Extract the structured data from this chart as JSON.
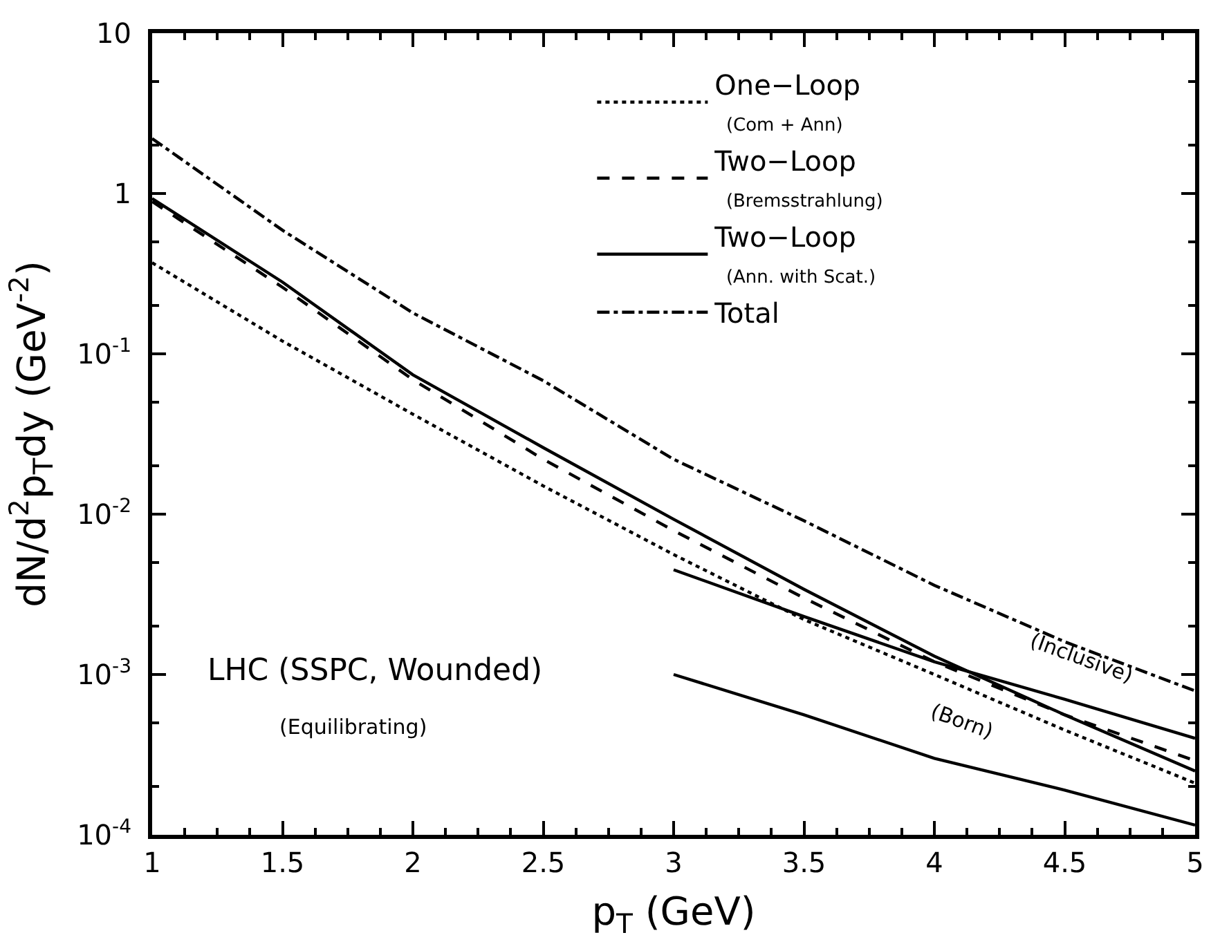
{
  "chart_data": {
    "type": "line",
    "xlabel": "p$_{T}$ (GeV)",
    "ylabel": "dN/d$^{2}$p$_{T}$dy (GeV$^{-2}$)",
    "log": "y",
    "legend": "top right",
    "marker": "none",
    "xlim": [
      1,
      5
    ],
    "xticks": [
      1,
      1.5,
      2,
      2.5,
      3,
      3.5,
      4,
      4.5,
      5
    ],
    "ylim": [
      0.0001,
      10
    ],
    "yticks": [
      {
        "value": 0.0001,
        "label": "10$^{-4}$"
      },
      {
        "value": 0.001,
        "label": "10$^{-3}$"
      },
      {
        "value": 0.01,
        "label": "10$^{-2}$"
      },
      {
        "value": 0.1,
        "label": "10$^{-1}$"
      },
      1,
      10
    ],
    "series": [
      {
        "name": "One−Loop\n(Com + Ann)",
        "color": "#000000",
        "line_style": "dotted",
        "x": [
          1,
          1.5,
          2,
          2.5,
          3,
          3.5,
          4,
          4.5,
          5
        ],
        "values": [
          0.37,
          0.12,
          0.042,
          0.015,
          0.0056,
          0.0022,
          0.001,
          0.00045,
          0.00021
        ]
      },
      {
        "name": "Two−Loop\n(Bremsstrahlung)",
        "color": "#000000",
        "line_style": "dashed",
        "x": [
          1,
          1.5,
          2,
          2.5,
          3,
          3.5,
          4,
          4.5,
          5
        ],
        "values": [
          0.89,
          0.26,
          0.069,
          0.022,
          0.0079,
          0.003,
          0.0012,
          0.00056,
          0.00029
        ]
      },
      {
        "name": "Two−Loop\n(Ann. with Scat.)",
        "color": "#000000",
        "line_style": "solid",
        "x": [
          1,
          1.5,
          2,
          2.5,
          3,
          3.5,
          4,
          4.5,
          5
        ],
        "values": [
          0.93,
          0.28,
          0.074,
          0.026,
          0.0093,
          0.0034,
          0.0013,
          0.00056,
          0.00025
        ]
      },
      {
        "name": "Total",
        "color": "#000000",
        "line_style": "dashdot",
        "x": [
          1,
          1.5,
          2,
          2.5,
          3,
          3.5,
          4,
          4.5,
          5
        ],
        "values": [
          2.2,
          0.59,
          0.18,
          0.068,
          0.022,
          0.0091,
          0.0036,
          0.0016,
          0.00079
        ]
      },
      {
        "color": "#000000",
        "line_style": "solid",
        "x": [
          3,
          3.5,
          4,
          4.5,
          5
        ],
        "values": [
          0.0045,
          0.0023,
          0.0012,
          0.0007,
          0.0004
        ]
      },
      {
        "color": "#000000",
        "line_style": "solid",
        "x": [
          3,
          3.5,
          4,
          4.5,
          5
        ],
        "values": [
          0.001,
          0.00056,
          0.0003,
          0.00019,
          0.000115
        ]
      }
    ],
    "annotations": [
      "(Inclusive)",
      "(Born)",
      "LHC (SSPC, Wounded)",
      "(Equilibrating)"
    ]
  }
}
